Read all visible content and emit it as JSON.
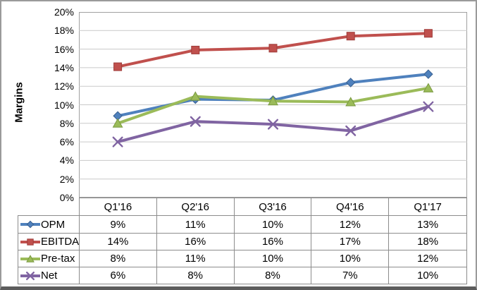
{
  "chart_data": {
    "type": "line",
    "title": "",
    "ylabel": "Margins",
    "xlabel": "",
    "ylim": [
      0,
      20
    ],
    "ytick_step": 2,
    "ytick_labels": [
      "20%",
      "18%",
      "16%",
      "14%",
      "12%",
      "10%",
      "8%",
      "6%",
      "4%",
      "2%",
      "0%"
    ],
    "grid": "horizontal-major",
    "legend_position": "left-column-of-data-table",
    "categories": [
      "Q1'16",
      "Q2'16",
      "Q3'16",
      "Q4'16",
      "Q1'17"
    ],
    "series": [
      {
        "name": "OPM",
        "color": "#4F81BD",
        "edge_color": "#3A6191",
        "marker": "diamond",
        "values": [
          8.8,
          10.6,
          10.5,
          12.4,
          13.3
        ],
        "table_values": [
          "9%",
          "11%",
          "10%",
          "12%",
          "13%"
        ]
      },
      {
        "name": "EBITDA",
        "color": "#C0504D",
        "edge_color": "#9E3B39",
        "marker": "square",
        "values": [
          14.1,
          15.9,
          16.1,
          17.4,
          17.7
        ],
        "table_values": [
          "14%",
          "16%",
          "16%",
          "17%",
          "18%"
        ]
      },
      {
        "name": "Pre-tax",
        "color": "#9BBB59",
        "edge_color": "#7A9A40",
        "marker": "triangle",
        "values": [
          8.0,
          10.9,
          10.4,
          10.3,
          11.8
        ],
        "table_values": [
          "8%",
          "11%",
          "10%",
          "10%",
          "12%"
        ]
      },
      {
        "name": "Net",
        "color": "#8064A2",
        "edge_color": "#644E81",
        "marker": "x",
        "values": [
          6.0,
          8.2,
          7.9,
          7.2,
          9.8
        ],
        "table_values": [
          "6%",
          "8%",
          "8%",
          "7%",
          "10%"
        ]
      }
    ],
    "style_colors": {
      "gridline": "#C9C9C9",
      "plot_border": "#A0A0A0",
      "table_border": "#8C8C8C",
      "background": "#FFFFFF"
    }
  }
}
